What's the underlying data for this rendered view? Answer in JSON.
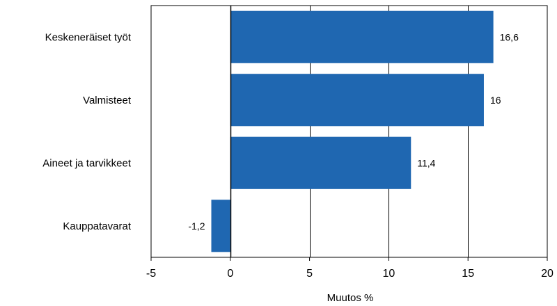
{
  "chart_data": {
    "type": "bar",
    "orientation": "horizontal",
    "categories": [
      "Keskeneräiset työt",
      "Valmisteet",
      "Aineet ja tarvikkeet",
      "Kauppatavarat"
    ],
    "values": [
      16.6,
      16,
      11.4,
      -1.2
    ],
    "value_labels": [
      "16,6",
      "16",
      "11,4",
      "-1,2"
    ],
    "xlabel": "Muutos %",
    "ylabel": "",
    "xlim": [
      -5,
      20
    ],
    "xticks": [
      -5,
      0,
      5,
      10,
      15,
      20
    ],
    "xtick_labels": [
      "-5",
      "0",
      "5",
      "10",
      "15",
      "20"
    ],
    "grid": "vertical",
    "legend": "none",
    "bar_color": "#1f67b1",
    "axis_color": "#000000"
  }
}
